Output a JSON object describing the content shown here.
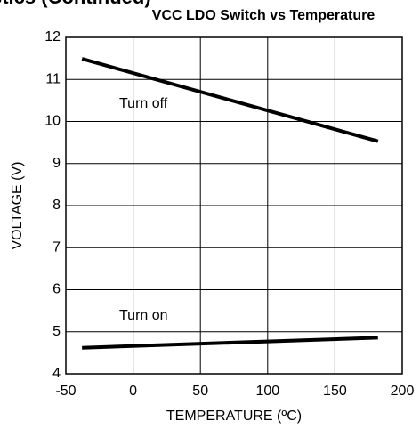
{
  "header": "stics (Continued)",
  "chart_data": {
    "type": "line",
    "title": "VCC LDO Switch vs Temperature",
    "x_label": "TEMPERATURE (ºC)",
    "y_label": "VOLTAGE (V)",
    "xlim": [
      -50,
      200
    ],
    "xticks": [
      -50,
      0,
      50,
      100,
      150,
      200
    ],
    "ylim": [
      4,
      12
    ],
    "yticks": [
      4,
      5,
      6,
      7,
      8,
      9,
      10,
      11,
      12
    ],
    "grid": true,
    "x": [
      -38,
      182
    ],
    "series": [
      {
        "name": "Turn off",
        "color": "#000000",
        "values": [
          11.49,
          9.53
        ]
      },
      {
        "name": "Turn on",
        "color": "#000000",
        "values": [
          4.62,
          4.86
        ]
      }
    ]
  }
}
